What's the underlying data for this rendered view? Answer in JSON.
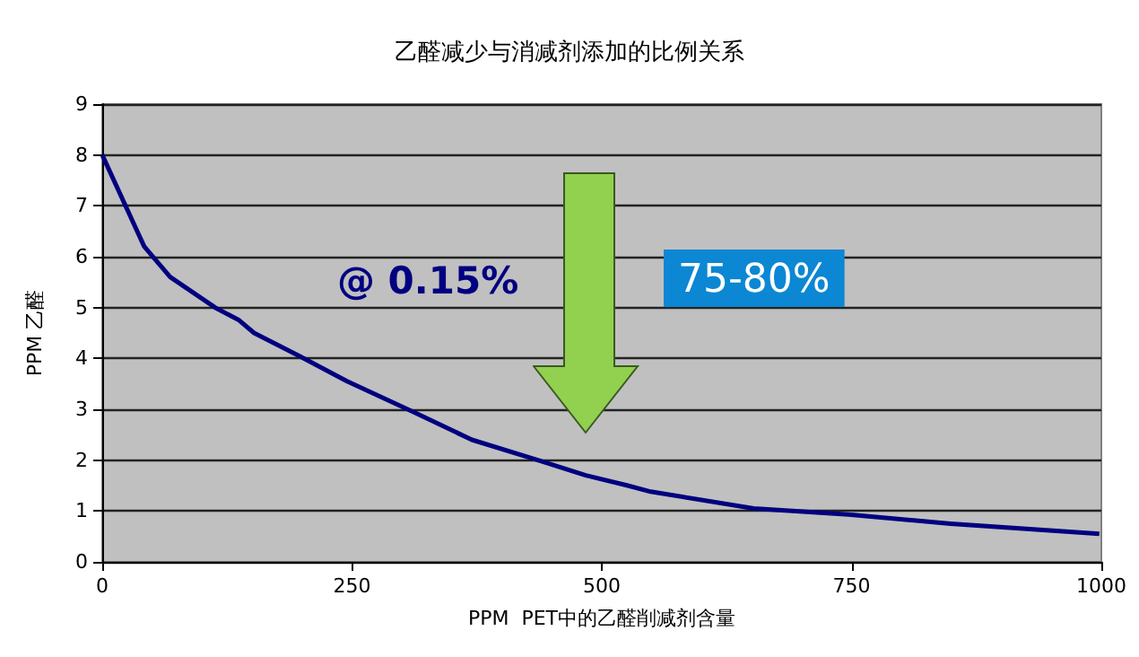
{
  "chart_data": {
    "type": "line",
    "title": "乙醛减少与消减剂添加的比例关系",
    "xlabel": "PPM  PET中的乙醛削减剂含量",
    "ylabel": "PPM 乙醛",
    "x": [
      0,
      42,
      68,
      113,
      137,
      152,
      197,
      245,
      311,
      370,
      436,
      484,
      526,
      549,
      652,
      747,
      849,
      998
    ],
    "series": [
      {
        "color": "#000080",
        "values": [
          8,
          6.2,
          5.6,
          5.0,
          4.75,
          4.5,
          4.05,
          3.55,
          2.95,
          2.4,
          2.0,
          1.7,
          1.5,
          1.38,
          1.05,
          0.93,
          0.75,
          0.55
        ]
      }
    ],
    "xlim": [
      0,
      1000
    ],
    "xticks": [
      0,
      250,
      500,
      750,
      1000
    ],
    "ylim": [
      0,
      9
    ],
    "yticks": [
      0,
      1,
      2,
      3,
      4,
      5,
      6,
      7,
      8,
      9
    ],
    "grid": "y",
    "marker": "none",
    "line_style": "solid",
    "annotations": [
      "@ 0.15%",
      "75-80%"
    ]
  }
}
